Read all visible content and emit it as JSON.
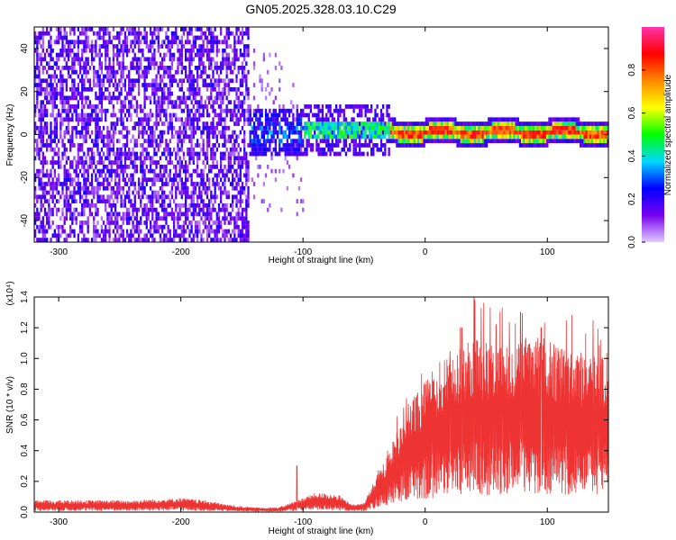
{
  "title": "GN05.2025.328.03.10.C29",
  "chart_data": [
    {
      "type": "heatmap",
      "xlabel": "Height of straight line (km)",
      "ylabel": "Frequency (Hz)",
      "xlim": [
        -320,
        150
      ],
      "ylim": [
        -50,
        50
      ],
      "xticks": [
        -300,
        -200,
        -100,
        0,
        100
      ],
      "yticks": [
        -40,
        -20,
        0,
        20,
        40
      ],
      "colorbar": {
        "label": "Normalized spectral amplitude",
        "range": [
          0,
          1
        ],
        "ticks": [
          "0.0",
          "0.2",
          "0.4",
          "0.6",
          "0.8"
        ],
        "tick_values": [
          0,
          0.2,
          0.4,
          0.6,
          0.8
        ],
        "colormap": [
          "#e0ccff",
          "#7700ee",
          "#0000ff",
          "#00d8ff",
          "#00ff00",
          "#ffff00",
          "#ff8800",
          "#ff0000",
          "#ff33aa"
        ]
      },
      "features": {
        "noise_region_x": [
          -320,
          -145
        ],
        "signal_center_frequency": 0,
        "signal_start_x": -145
      }
    },
    {
      "type": "line",
      "xlabel": "Height of straight line (km)",
      "ylabel": "SNR (10 * v/v)",
      "y_multiplier": "(x10⁴)",
      "xlim": [
        -320,
        150
      ],
      "ylim": [
        0,
        1.4
      ],
      "xticks": [
        -300,
        -200,
        -100,
        0,
        100
      ],
      "yticks": [
        "0.0",
        "0.2",
        "0.4",
        "0.6",
        "0.8",
        "1.0",
        "1.2",
        "1.4"
      ],
      "ytick_values": [
        0,
        0.2,
        0.4,
        0.6,
        0.8,
        1.0,
        1.2,
        1.4
      ],
      "color": "#ee3333",
      "series": [
        {
          "x": [
            -320,
            -280,
            -240,
            -200,
            -180,
            -160,
            -140,
            -120,
            -110,
            -100,
            -90,
            -80,
            -70,
            -60,
            -50,
            -40,
            -30,
            -20,
            -10,
            0,
            10,
            20,
            30,
            40,
            50,
            60,
            70,
            80,
            90,
            100,
            110,
            120,
            130,
            140,
            150
          ],
          "values": [
            0.05,
            0.05,
            0.05,
            0.06,
            0.05,
            0.03,
            0.02,
            0.02,
            0.04,
            0.06,
            0.08,
            0.08,
            0.07,
            0.03,
            0.04,
            0.15,
            0.25,
            0.38,
            0.48,
            0.55,
            0.62,
            0.68,
            0.7,
            0.74,
            0.72,
            0.7,
            0.72,
            0.74,
            0.74,
            0.72,
            0.7,
            0.68,
            0.68,
            0.66,
            0.68
          ],
          "peaks": [
            [
              40,
              1.42
            ],
            [
              78,
              1.3
            ],
            [
              58,
              1.22
            ],
            [
              95,
              1.2
            ],
            [
              -105,
              0.3
            ],
            [
              30,
              1.2
            ]
          ]
        }
      ]
    }
  ]
}
